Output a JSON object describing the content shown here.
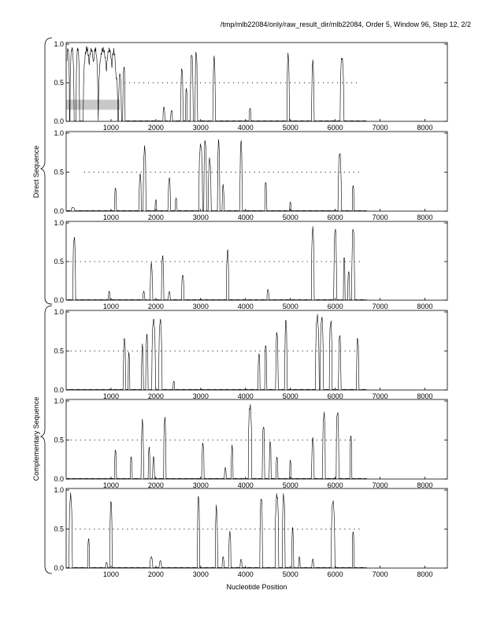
{
  "header": {
    "text": "/tmp/mlb22084/only/raw_result_dir/mlb22084, Order 5, Window 96, Step 12, 2/2"
  },
  "axes": {
    "xlabel": "Nucleotide Position",
    "direct_label": "Direct Sequence",
    "complementary_label": "Complementary Sequence",
    "x_ticks": [
      1000,
      2000,
      3000,
      4000,
      5000,
      6000,
      7000,
      8000
    ],
    "y_ticks": [
      "0.0",
      "0.5",
      "1.0"
    ]
  },
  "colors": {
    "line": "#000000",
    "shading": "#c8c8c8",
    "frame": "#000000"
  },
  "chart_data": {
    "type": "line",
    "xlim": [
      0,
      8500
    ],
    "ylim": [
      0,
      1
    ],
    "grid": false,
    "shaded_region": {
      "panel": 1,
      "x": [
        0,
        1200
      ],
      "y": [
        0.15,
        0.28
      ]
    },
    "panels": [
      {
        "group": "Direct Sequence",
        "frame": 1,
        "peaks": [
          [
            40,
            1.0,
            35
          ],
          [
            130,
            1.0,
            45
          ],
          [
            260,
            1.0,
            40
          ],
          [
            460,
            0.98,
            80
          ],
          [
            560,
            0.98,
            70
          ],
          [
            650,
            0.98,
            60
          ],
          [
            820,
            0.98,
            100
          ],
          [
            960,
            0.98,
            80
          ],
          [
            1060,
            0.95,
            60
          ],
          [
            1120,
            0.6,
            30
          ],
          [
            1200,
            0.65,
            30
          ],
          [
            1290,
            0.75,
            25
          ],
          [
            2180,
            0.2,
            20
          ],
          [
            2350,
            0.15,
            20
          ],
          [
            2580,
            0.72,
            25
          ],
          [
            2680,
            0.45,
            20
          ],
          [
            2800,
            0.92,
            30
          ],
          [
            2900,
            0.95,
            25
          ],
          [
            3300,
            0.88,
            25
          ],
          [
            4100,
            0.18,
            20
          ],
          [
            4950,
            0.92,
            25
          ],
          [
            5500,
            0.82,
            25
          ],
          [
            6150,
            0.87,
            40
          ]
        ],
        "orfs": [
          [
            1300,
            6550
          ]
        ]
      },
      {
        "group": "Direct Sequence",
        "frame": 2,
        "peaks": [
          [
            150,
            0.05,
            40
          ],
          [
            1100,
            0.32,
            20
          ],
          [
            1650,
            0.5,
            25
          ],
          [
            1750,
            0.86,
            30
          ],
          [
            2000,
            0.15,
            20
          ],
          [
            2300,
            0.45,
            25
          ],
          [
            2450,
            0.18,
            20
          ],
          [
            3000,
            0.9,
            40
          ],
          [
            3100,
            0.95,
            30
          ],
          [
            3200,
            0.7,
            30
          ],
          [
            3400,
            0.95,
            25
          ],
          [
            3500,
            0.35,
            20
          ],
          [
            3900,
            0.95,
            25
          ],
          [
            4450,
            0.4,
            20
          ],
          [
            5000,
            0.12,
            20
          ],
          [
            6100,
            0.78,
            35
          ],
          [
            6400,
            0.35,
            20
          ]
        ],
        "orfs": [
          [
            400,
            6550
          ]
        ]
      },
      {
        "group": "Direct Sequence",
        "frame": 3,
        "peaks": [
          [
            180,
            0.85,
            30
          ],
          [
            960,
            0.12,
            20
          ],
          [
            1730,
            0.12,
            20
          ],
          [
            1900,
            0.5,
            25
          ],
          [
            2150,
            0.6,
            25
          ],
          [
            2300,
            0.12,
            20
          ],
          [
            2600,
            0.35,
            25
          ],
          [
            3600,
            0.68,
            25
          ],
          [
            4500,
            0.15,
            20
          ],
          [
            5500,
            0.98,
            30
          ],
          [
            6000,
            0.98,
            30
          ],
          [
            6200,
            0.6,
            20
          ],
          [
            6300,
            0.4,
            20
          ],
          [
            6400,
            0.98,
            30
          ]
        ],
        "orfs": [
          [
            100,
            6600
          ]
        ]
      },
      {
        "group": "Complementary Sequence",
        "frame": 1,
        "peaks": [
          [
            1300,
            0.7,
            25
          ],
          [
            1400,
            0.5,
            20
          ],
          [
            1700,
            0.6,
            20
          ],
          [
            1800,
            0.75,
            25
          ],
          [
            1950,
            0.95,
            40
          ],
          [
            2100,
            0.95,
            35
          ],
          [
            2400,
            0.12,
            20
          ],
          [
            4300,
            0.5,
            20
          ],
          [
            4450,
            0.62,
            20
          ],
          [
            4700,
            0.78,
            25
          ],
          [
            4900,
            0.95,
            25
          ],
          [
            5600,
            0.98,
            40
          ],
          [
            5700,
            0.98,
            35
          ],
          [
            5900,
            0.92,
            30
          ],
          [
            6100,
            0.75,
            25
          ],
          [
            6500,
            0.7,
            25
          ]
        ],
        "orfs": [
          [
            100,
            6500
          ]
        ]
      },
      {
        "group": "Complementary Sequence",
        "frame": 2,
        "peaks": [
          [
            1100,
            0.4,
            20
          ],
          [
            1450,
            0.3,
            20
          ],
          [
            1700,
            0.78,
            25
          ],
          [
            1850,
            0.42,
            20
          ],
          [
            1950,
            0.3,
            20
          ],
          [
            2200,
            0.82,
            25
          ],
          [
            3050,
            0.48,
            25
          ],
          [
            3550,
            0.15,
            20
          ],
          [
            3700,
            0.45,
            20
          ],
          [
            4100,
            0.98,
            40
          ],
          [
            4400,
            0.72,
            25
          ],
          [
            4550,
            0.52,
            20
          ],
          [
            4700,
            0.3,
            20
          ],
          [
            5000,
            0.25,
            20
          ],
          [
            5500,
            0.55,
            25
          ],
          [
            5750,
            0.88,
            30
          ],
          [
            6050,
            0.9,
            30
          ],
          [
            6350,
            0.6,
            20
          ]
        ],
        "orfs": [
          [
            100,
            6500
          ]
        ]
      },
      {
        "group": "Complementary Sequence",
        "frame": 3,
        "peaks": [
          [
            100,
            0.98,
            35
          ],
          [
            500,
            0.4,
            20
          ],
          [
            900,
            0.08,
            20
          ],
          [
            1000,
            0.92,
            25
          ],
          [
            1900,
            0.15,
            30
          ],
          [
            2100,
            0.1,
            25
          ],
          [
            2950,
            0.98,
            25
          ],
          [
            3350,
            0.82,
            25
          ],
          [
            3500,
            0.15,
            20
          ],
          [
            3650,
            0.48,
            25
          ],
          [
            3900,
            0.12,
            20
          ],
          [
            4350,
            0.95,
            30
          ],
          [
            4700,
            0.98,
            40
          ],
          [
            4850,
            0.98,
            30
          ],
          [
            5050,
            0.55,
            20
          ],
          [
            5200,
            0.15,
            20
          ],
          [
            5500,
            0.12,
            20
          ],
          [
            5950,
            0.9,
            40
          ],
          [
            6400,
            0.5,
            20
          ]
        ],
        "orfs": [
          [
            200,
            6600
          ]
        ]
      }
    ]
  }
}
